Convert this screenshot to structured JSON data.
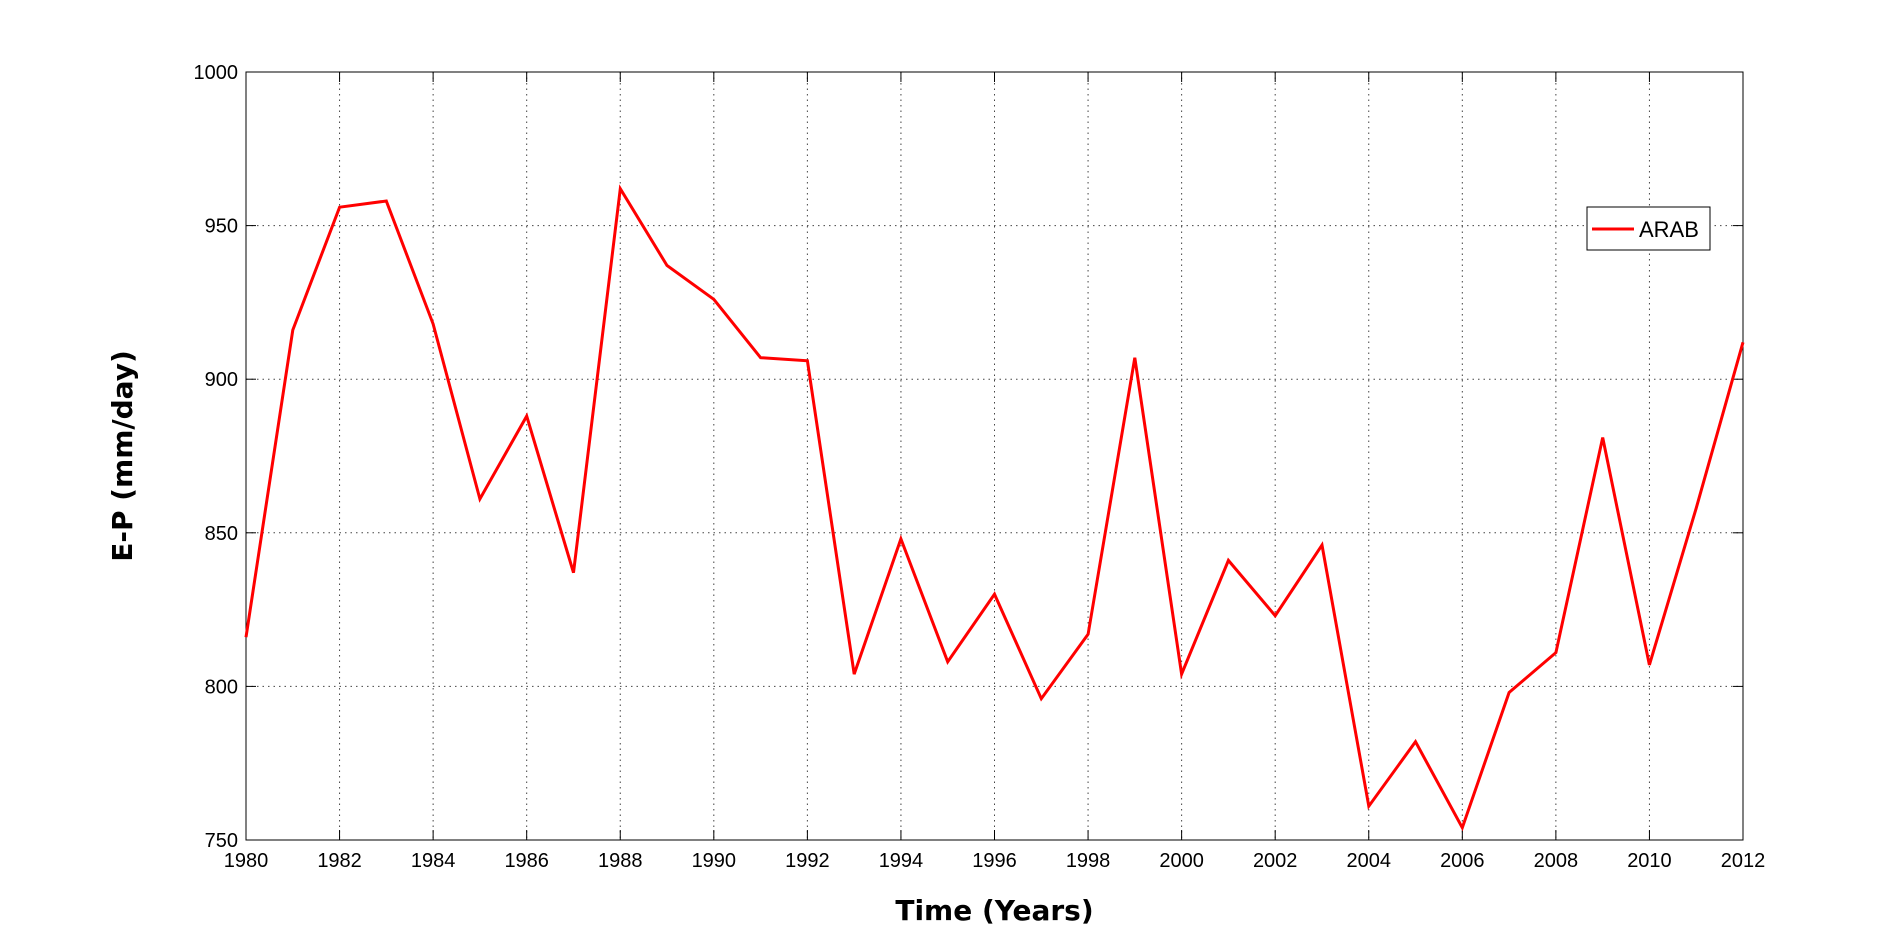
{
  "chart_data": {
    "type": "line",
    "title": "",
    "xlabel": "Time (Years)",
    "ylabel": "E-P (mm/day)",
    "xlim": [
      1980,
      2012
    ],
    "ylim": [
      750,
      1000
    ],
    "xticks": [
      1980,
      1982,
      1984,
      1986,
      1988,
      1990,
      1992,
      1994,
      1996,
      1998,
      2000,
      2002,
      2004,
      2006,
      2008,
      2010,
      2012
    ],
    "yticks": [
      750,
      800,
      850,
      900,
      950,
      1000
    ],
    "grid": true,
    "legend_position": "top-right",
    "x": [
      1980,
      1981,
      1982,
      1983,
      1984,
      1985,
      1986,
      1987,
      1988,
      1989,
      1990,
      1991,
      1992,
      1993,
      1994,
      1995,
      1996,
      1997,
      1998,
      1999,
      2000,
      2001,
      2002,
      2003,
      2004,
      2005,
      2006,
      2007,
      2008,
      2009,
      2010,
      2011,
      2012
    ],
    "series": [
      {
        "name": "ARAB",
        "color": "#ff0000",
        "values": [
          816,
          916,
          956,
          958,
          918,
          861,
          888,
          837,
          962,
          937,
          926,
          907,
          906,
          804,
          848,
          808,
          830,
          796,
          817,
          907,
          804,
          841,
          823,
          846,
          761,
          782,
          754,
          798,
          811,
          881,
          807,
          858,
          912
        ]
      }
    ]
  }
}
